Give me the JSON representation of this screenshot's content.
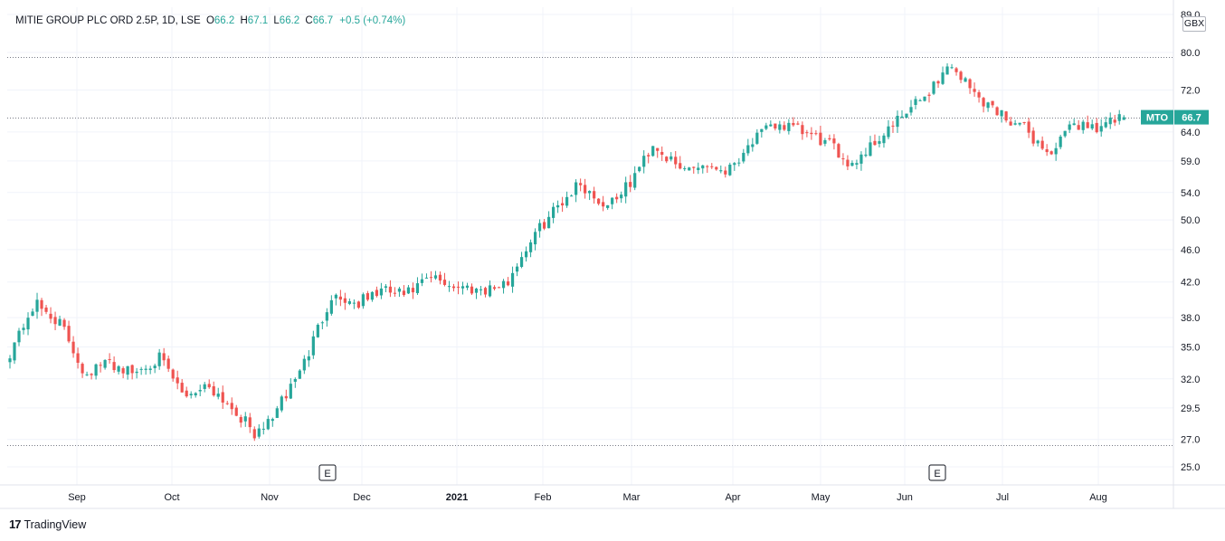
{
  "legend": {
    "title": "MITIE GROUP PLC ORD 2.5P, 1D, LSE",
    "open_key": "O",
    "open": "66.2",
    "high_key": "H",
    "high": "67.1",
    "low_key": "L",
    "low": "66.2",
    "close_key": "C",
    "close": "66.7",
    "change": "+0.5 (+0.74%)"
  },
  "currency": "GBX",
  "price_tag": {
    "symbol": "MTO",
    "value": "66.7",
    "color": "#26a69a"
  },
  "footer": {
    "logo": "17",
    "brand": "TradingView"
  },
  "colors": {
    "up": "#26a69a",
    "down": "#ef5350",
    "grid": "#f0f3fa",
    "axis": "#e0e3eb",
    "dotted": "#787b86"
  },
  "chart_data": {
    "type": "candlestick",
    "title": "MITIE GROUP PLC ORD 2.5P, 1D, LSE",
    "y_scale": "log",
    "ylim": [
      24.0,
      89.0
    ],
    "y_ticks": [
      "25.0",
      "27.0",
      "29.5",
      "32.0",
      "35.0",
      "38.0",
      "42.0",
      "46.0",
      "50.0",
      "54.0",
      "59.0",
      "64.0",
      "72.0",
      "80.0",
      "89.0"
    ],
    "x_ticks": [
      "Sep",
      "Oct",
      "Nov",
      "Dec",
      "2021",
      "Feb",
      "Mar",
      "Apr",
      "May",
      "Jun",
      "Jul",
      "Aug"
    ],
    "x_ticks_bold": [
      "2021"
    ],
    "dotted_levels": [
      79.0,
      66.7,
      26.6
    ],
    "events": [
      "E",
      "E"
    ],
    "series": [
      {
        "name": "MTO",
        "close_path": [
          {
            "date": "Aug 2020",
            "close": 34.5
          },
          {
            "date": "Aug 2020",
            "close": 39.5
          },
          {
            "date": "Aug 2020",
            "close": 37.5
          },
          {
            "date": "Sep 2020",
            "close": 32.5
          },
          {
            "date": "Sep 2020",
            "close": 33.5
          },
          {
            "date": "Sep 2020",
            "close": 32.5
          },
          {
            "date": "Oct 2020",
            "close": 34.0
          },
          {
            "date": "Oct 2020",
            "close": 30.5
          },
          {
            "date": "Oct 2020",
            "close": 31.5
          },
          {
            "date": "Oct 2020",
            "close": 29.5
          },
          {
            "date": "Nov 2020",
            "close": 27.2
          },
          {
            "date": "Nov 2020",
            "close": 30.0
          },
          {
            "date": "Nov 2020",
            "close": 34.0
          },
          {
            "date": "Nov 2020",
            "close": 40.5
          },
          {
            "date": "Dec 2020",
            "close": 39.5
          },
          {
            "date": "Dec 2020",
            "close": 41.0
          },
          {
            "date": "Dec 2020",
            "close": 40.5
          },
          {
            "date": "Dec 2020",
            "close": 42.5
          },
          {
            "date": "Jan 2021",
            "close": 41.5
          },
          {
            "date": "Jan 2021",
            "close": 41.2
          },
          {
            "date": "Jan 2021",
            "close": 41.5
          },
          {
            "date": "Jan 2021",
            "close": 47.0
          },
          {
            "date": "Feb 2021",
            "close": 51.5
          },
          {
            "date": "Feb 2021",
            "close": 55.5
          },
          {
            "date": "Feb 2021",
            "close": 52.0
          },
          {
            "date": "Feb 2021",
            "close": 55.0
          },
          {
            "date": "Mar 2021",
            "close": 62.0
          },
          {
            "date": "Mar 2021",
            "close": 57.5
          },
          {
            "date": "Mar 2021",
            "close": 58.5
          },
          {
            "date": "Mar 2021",
            "close": 57.5
          },
          {
            "date": "Apr 2021",
            "close": 62.5
          },
          {
            "date": "Apr 2021",
            "close": 65.5
          },
          {
            "date": "Apr 2021",
            "close": 64.0
          },
          {
            "date": "May 2021",
            "close": 62.0
          },
          {
            "date": "May 2021",
            "close": 58.5
          },
          {
            "date": "May 2021",
            "close": 62.5
          },
          {
            "date": "May 2021",
            "close": 66.5
          },
          {
            "date": "Jun 2021",
            "close": 71.0
          },
          {
            "date": "Jun 2021",
            "close": 77.5
          },
          {
            "date": "Jun 2021",
            "close": 71.0
          },
          {
            "date": "Jul 2021",
            "close": 67.5
          },
          {
            "date": "Jul 2021",
            "close": 64.5
          },
          {
            "date": "Jul 2021",
            "close": 60.0
          },
          {
            "date": "Jul 2021",
            "close": 65.5
          },
          {
            "date": "Aug 2021",
            "close": 65.0
          },
          {
            "date": "Aug 2021",
            "close": 66.7
          }
        ],
        "last_candle": {
          "open": 66.2,
          "high": 67.1,
          "low": 66.2,
          "close": 66.7
        }
      }
    ]
  }
}
